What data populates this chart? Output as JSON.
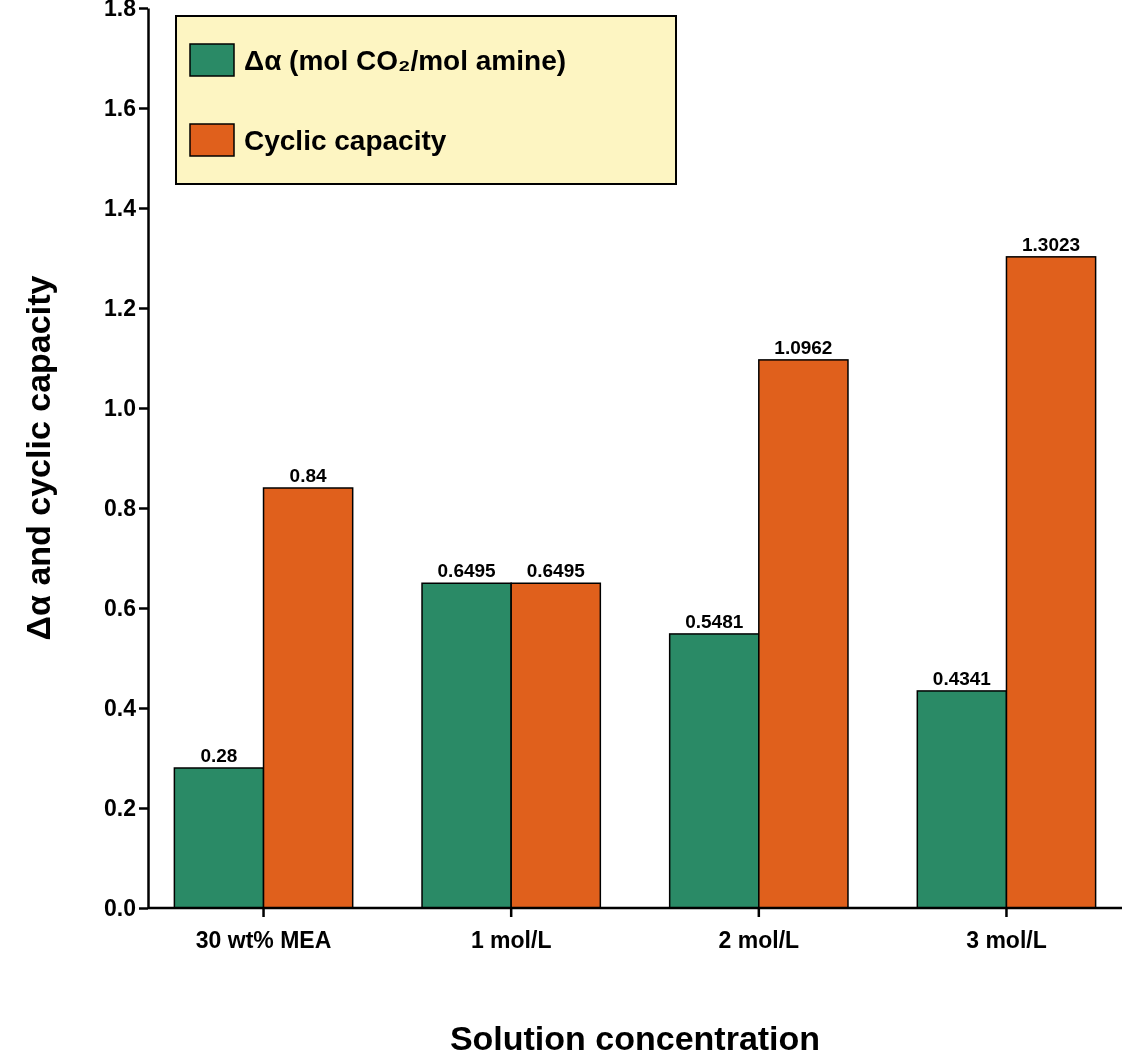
{
  "chart_data": {
    "type": "bar",
    "xlabel": "Solution concentration",
    "ylabel": "Δα and cyclic capacity",
    "categories": [
      "30 wt% MEA",
      "1 mol/L",
      "2 mol/L",
      "3 mol/L"
    ],
    "series": [
      {
        "name": "Δα (mol CO₂/mol amine)",
        "color": "#2a8a66",
        "values": [
          0.28,
          0.6495,
          0.5481,
          0.4341
        ]
      },
      {
        "name": "Cyclic capacity",
        "color": "#e0601c",
        "values": [
          0.84,
          0.6495,
          1.0962,
          1.3023
        ]
      }
    ],
    "ylim": [
      0,
      1.8
    ],
    "yticks": [
      {
        "value": 0,
        "label": "0.0"
      },
      0.2,
      0.4,
      0.6,
      0.8,
      {
        "value": 1,
        "label": "1.0"
      },
      1.2,
      1.4,
      1.6,
      1.8
    ],
    "data_labels": true,
    "legend": "top left",
    "grid": false
  }
}
